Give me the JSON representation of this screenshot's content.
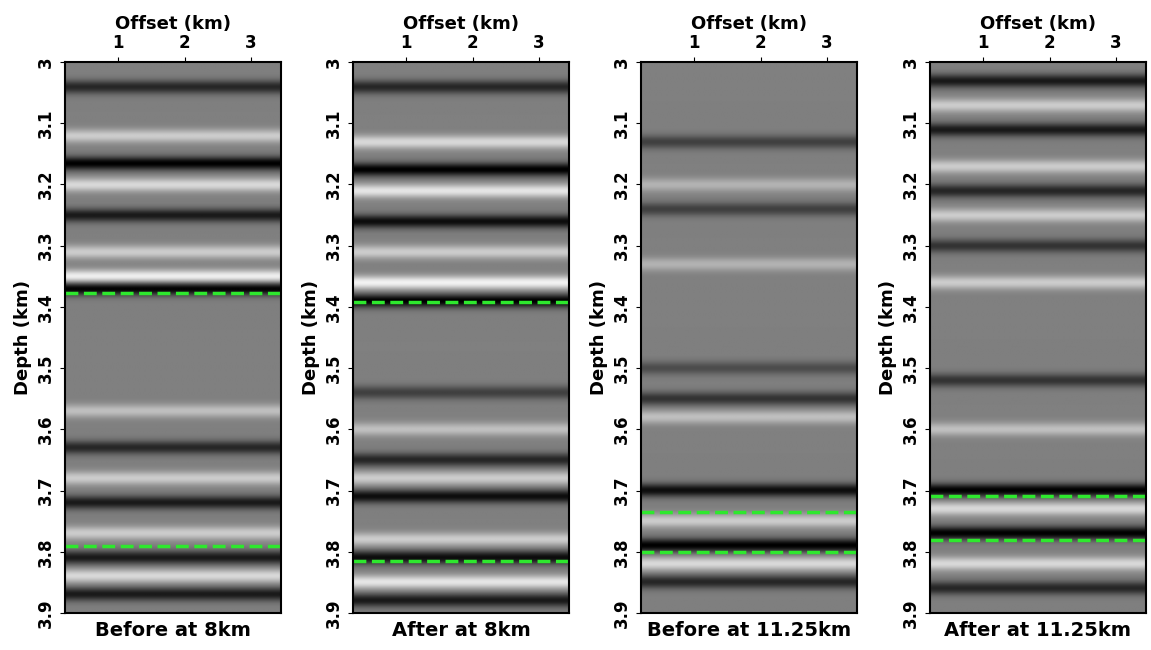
{
  "chart_data": [
    {
      "type": "image",
      "title": "Before at 8km",
      "xlabel": "Offset (km)",
      "ylabel": "Depth (km)",
      "xlim": [
        0.2,
        3.45
      ],
      "ylim": [
        3.9,
        3.0
      ],
      "xticks": [
        1,
        2,
        3
      ],
      "yticks": [
        3,
        3.1,
        3.2,
        3.3,
        3.4,
        3.5,
        3.6,
        3.7,
        3.8,
        3.9
      ],
      "color_range": [
        -1,
        1
      ],
      "reflectors": {
        "depth": [
          3.04,
          3.12,
          3.165,
          3.2,
          3.25,
          3.31,
          3.35,
          3.37,
          3.57,
          3.63,
          3.68,
          3.72,
          3.77,
          3.81,
          3.84,
          3.87
        ],
        "amplitude": [
          -0.7,
          0.6,
          -1,
          0.7,
          -0.8,
          0.6,
          0.9,
          -1,
          0.5,
          -0.7,
          0.6,
          -0.8,
          0.6,
          -0.8,
          0.7,
          -0.8
        ]
      },
      "horizon_lines": {
        "values": [
          3.377,
          3.79
        ],
        "color": "#2ee82e",
        "line_style": "dashed"
      }
    },
    {
      "type": "image",
      "title": "After at 8km",
      "xlabel": "Offset (km)",
      "ylabel": "Depth (km)",
      "xlim": [
        0.2,
        3.45
      ],
      "ylim": [
        3.9,
        3.0
      ],
      "xticks": [
        1,
        2,
        3
      ],
      "yticks": [
        3,
        3.1,
        3.2,
        3.3,
        3.4,
        3.5,
        3.6,
        3.7,
        3.8,
        3.9
      ],
      "color_range": [
        -1,
        1
      ],
      "reflectors": {
        "depth": [
          3.04,
          3.13,
          3.175,
          3.21,
          3.26,
          3.31,
          3.36,
          3.39,
          3.54,
          3.6,
          3.65,
          3.68,
          3.71,
          3.78,
          3.81,
          3.85,
          3.88
        ],
        "amplitude": [
          -0.7,
          0.7,
          -1,
          0.8,
          -0.9,
          0.6,
          0.9,
          -1,
          -0.5,
          0.5,
          -0.7,
          0.6,
          -0.9,
          0.6,
          -0.9,
          0.8,
          -0.8
        ]
      },
      "horizon_lines": {
        "values": [
          3.392,
          3.815
        ],
        "color": "#2ee82e",
        "line_style": "dashed"
      }
    },
    {
      "type": "image",
      "title": "Before at 11.25km",
      "xlabel": "Offset (km)",
      "ylabel": "Depth (km)",
      "xlim": [
        0.2,
        3.45
      ],
      "ylim": [
        3.9,
        3.0
      ],
      "xticks": [
        1,
        2,
        3
      ],
      "yticks": [
        3,
        3.1,
        3.2,
        3.3,
        3.4,
        3.5,
        3.6,
        3.7,
        3.8,
        3.9
      ],
      "color_range": [
        -1,
        1
      ],
      "reflectors": {
        "depth": [
          3.13,
          3.2,
          3.24,
          3.33,
          3.5,
          3.55,
          3.58,
          3.7,
          3.75,
          3.79,
          3.82,
          3.85
        ],
        "amplitude": [
          -0.5,
          0.4,
          -0.5,
          0.4,
          -0.4,
          -0.6,
          0.5,
          -0.9,
          0.6,
          -1,
          0.7,
          -0.7
        ]
      },
      "horizon_lines": {
        "values": [
          3.735,
          3.8
        ],
        "color": "#2ee82e",
        "line_style": "dashed"
      }
    },
    {
      "type": "image",
      "title": "After at 11.25km",
      "xlabel": "Offset (km)",
      "ylabel": "Depth (km)",
      "xlim": [
        0.2,
        3.45
      ],
      "ylim": [
        3.9,
        3.0
      ],
      "xticks": [
        1,
        2,
        3
      ],
      "yticks": [
        3,
        3.1,
        3.2,
        3.3,
        3.4,
        3.5,
        3.6,
        3.7,
        3.8,
        3.9
      ],
      "color_range": [
        -1,
        1
      ],
      "reflectors": {
        "depth": [
          3.03,
          3.07,
          3.11,
          3.17,
          3.21,
          3.25,
          3.3,
          3.36,
          3.52,
          3.6,
          3.7,
          3.73,
          3.77,
          3.82,
          3.86
        ],
        "amplitude": [
          -0.8,
          0.6,
          -0.8,
          0.6,
          -0.7,
          0.6,
          -0.6,
          0.6,
          -0.6,
          0.5,
          -1,
          0.7,
          -1,
          0.7,
          -0.7
        ]
      },
      "horizon_lines": {
        "values": [
          3.709,
          3.78
        ],
        "color": "#2ee82e",
        "line_style": "dashed"
      }
    }
  ]
}
